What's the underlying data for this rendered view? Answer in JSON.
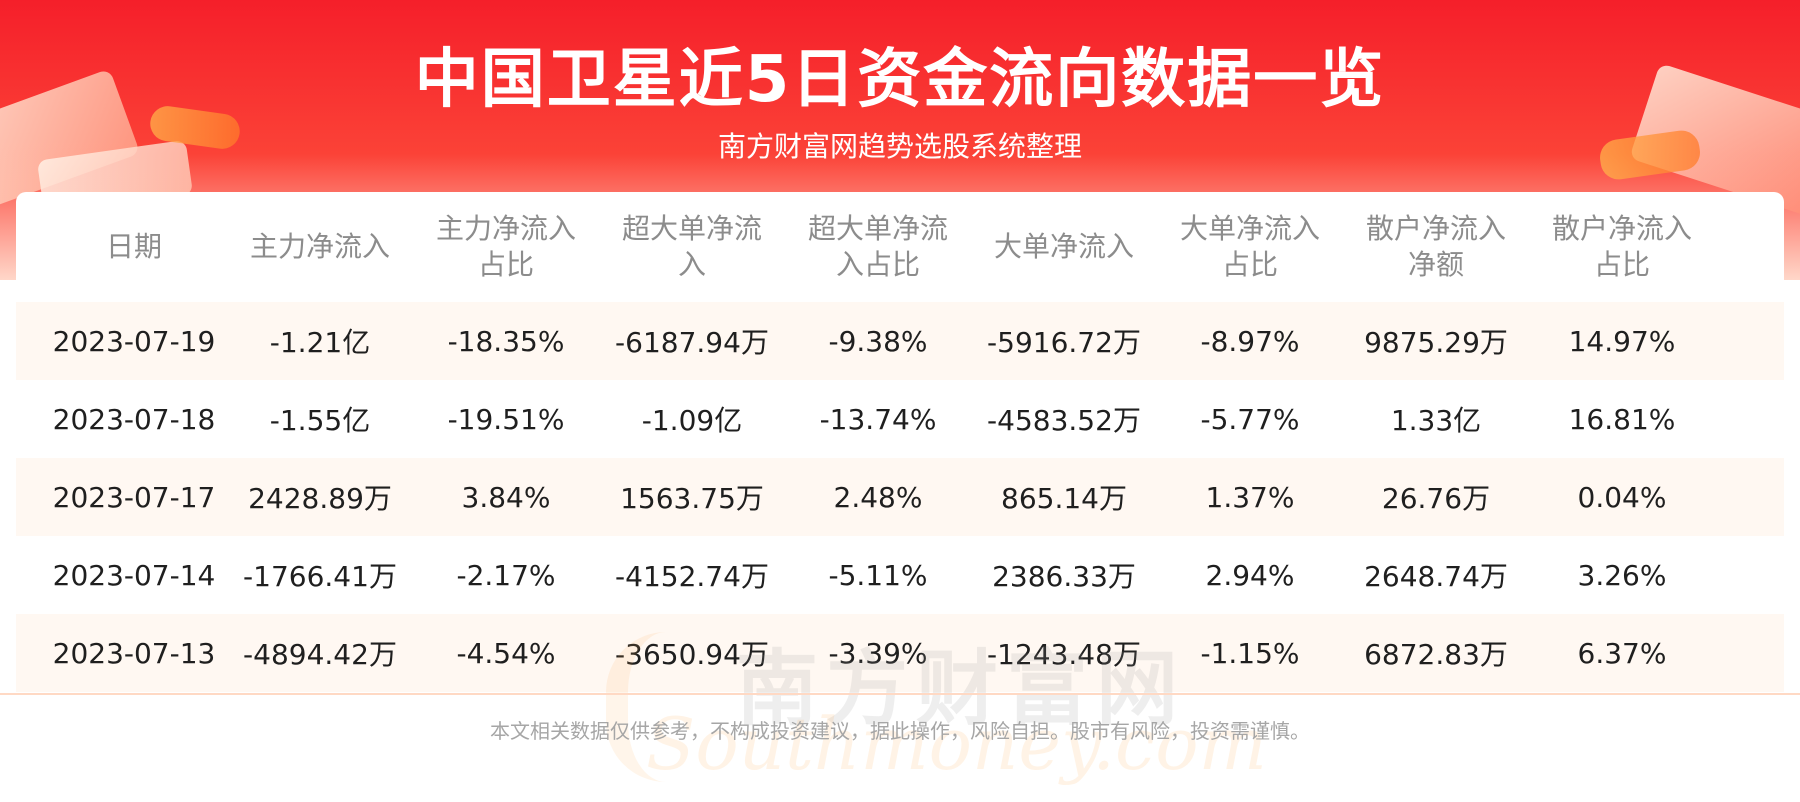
{
  "header": {
    "title": "中国卫星近5日资金流向数据一览",
    "subtitle": "南方财富网趋势选股系统整理"
  },
  "watermark": {
    "cn": "南方财富网",
    "en": "Southmoney.com"
  },
  "chart_data": {
    "type": "table",
    "columns": [
      [
        "日期"
      ],
      [
        "主力净流入"
      ],
      [
        "主力净流入",
        "占比"
      ],
      [
        "超大单净流",
        "入"
      ],
      [
        "超大单净流",
        "入占比"
      ],
      [
        "大单净流入"
      ],
      [
        "大单净流入",
        "占比"
      ],
      [
        "散户净流入",
        "净额"
      ],
      [
        "散户净流入",
        "占比"
      ]
    ],
    "rows": [
      [
        "2023-07-19",
        "-1.21亿",
        "-18.35%",
        "-6187.94万",
        "-9.38%",
        "-5916.72万",
        "-8.97%",
        "9875.29万",
        "14.97%"
      ],
      [
        "2023-07-18",
        "-1.55亿",
        "-19.51%",
        "-1.09亿",
        "-13.74%",
        "-4583.52万",
        "-5.77%",
        "1.33亿",
        "16.81%"
      ],
      [
        "2023-07-17",
        "2428.89万",
        "3.84%",
        "1563.75万",
        "2.48%",
        "865.14万",
        "1.37%",
        "26.76万",
        "0.04%"
      ],
      [
        "2023-07-14",
        "-1766.41万",
        "-2.17%",
        "-4152.74万",
        "-5.11%",
        "2386.33万",
        "2.94%",
        "2648.74万",
        "3.26%"
      ],
      [
        "2023-07-13",
        "-4894.42万",
        "-4.54%",
        "-3650.94万",
        "-3.39%",
        "-1243.48万",
        "-1.15%",
        "6872.83万",
        "6.37%"
      ]
    ]
  },
  "footer": {
    "disclaimer": "本文相关数据仅供参考，不构成投资建议，据此操作，风险自担。股市有风险，投资需谨慎。"
  },
  "colors": {
    "banner_red": "#f51f2a",
    "odd_row": "#fff8f2",
    "header_text": "#8c8c8c"
  }
}
